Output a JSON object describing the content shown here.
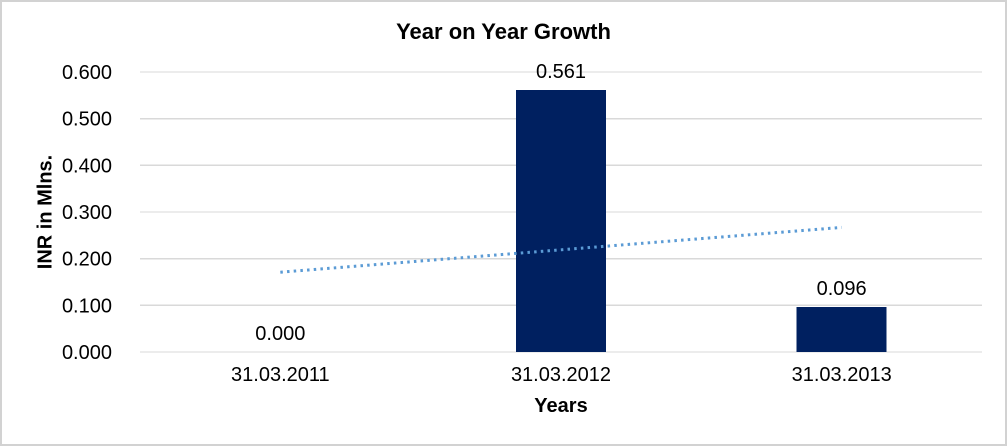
{
  "chart_data": {
    "type": "bar",
    "title": "Year on Year Growth",
    "xlabel": "Years",
    "ylabel": "INR in Mlns.",
    "categories": [
      "31.03.2011",
      "31.03.2012",
      "31.03.2013"
    ],
    "values": [
      0.0,
      0.561,
      0.096
    ],
    "data_labels": [
      "0.000",
      "0.561",
      "0.096"
    ],
    "ylim": [
      0,
      0.6
    ],
    "ytick_labels": [
      "0.000",
      "0.100",
      "0.200",
      "0.300",
      "0.400",
      "0.500",
      "0.600"
    ],
    "ytick_values": [
      0,
      0.1,
      0.2,
      0.3,
      0.4,
      0.5,
      0.6
    ],
    "grid": true,
    "legend": "none",
    "trendline": {
      "type": "linear",
      "style": "dotted",
      "start_value": 0.171,
      "end_value": 0.267
    },
    "colors": {
      "bar": "#002060",
      "trendline": "#5B9BD5",
      "gridline": "#D9D9D9",
      "text": "#000000",
      "background": "#FFFFFF",
      "frame_border": "#D2D2D2"
    }
  }
}
